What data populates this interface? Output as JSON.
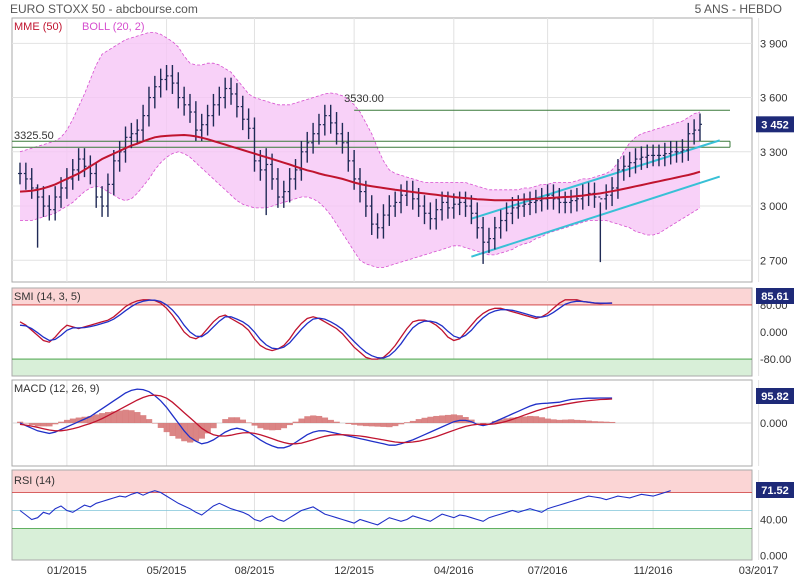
{
  "header": {
    "title": "EURO STOXX 50 - abcbourse.com",
    "period": "5 ANS - HEBDO"
  },
  "colors": {
    "price": "#1f2a56",
    "mme": "#c0142f",
    "boll_fill": "#f6c6f6",
    "boll_line": "#d64fcf",
    "channel": "#38c0d6",
    "level": "#3a7a3a",
    "smi_k": "#c0142f",
    "smi_d": "#2030c8",
    "macd": "#2030c8",
    "signal": "#c0142f",
    "hist": "#d57070",
    "rsi": "#2030c8",
    "zone_high": "#fbd5d5",
    "zone_low": "#d8efd8",
    "badge": "#1e2a78"
  },
  "chart_data": [
    {
      "type": "candlestick",
      "name": "main",
      "legend": [
        "MME (50)",
        "BOLL (20, 2)"
      ],
      "x_labels": [
        "01/2015",
        "05/2015",
        "08/2015",
        "12/2015",
        "04/2016",
        "07/2016",
        "11/2016",
        "03/2017"
      ],
      "x_label_index": [
        8,
        25,
        40,
        57,
        74,
        90,
        108,
        126
      ],
      "y_ticks": [
        2700,
        3000,
        3300,
        3600,
        3900
      ],
      "y_tick_labels": [
        "2 700",
        "3 000",
        "3 300",
        "3 600",
        "3 900"
      ],
      "ylim": [
        2580,
        4040
      ],
      "last_value": "3 452",
      "annotations": [
        {
          "label": "3325.50",
          "value": 3325.5
        },
        {
          "label": "3530.00",
          "value": 3530
        }
      ],
      "close": [
        3180,
        3150,
        3100,
        3050,
        3000,
        2980,
        3050,
        3100,
        3150,
        3200,
        3260,
        3220,
        3180,
        3050,
        3000,
        3120,
        3250,
        3300,
        3380,
        3400,
        3420,
        3500,
        3600,
        3660,
        3700,
        3720,
        3680,
        3600,
        3560,
        3520,
        3420,
        3450,
        3500,
        3560,
        3600,
        3650,
        3620,
        3550,
        3480,
        3430,
        3250,
        3200,
        3230,
        3150,
        3050,
        3080,
        3150,
        3200,
        3300,
        3350,
        3400,
        3450,
        3500,
        3460,
        3400,
        3350,
        3250,
        3150,
        3080,
        3000,
        2900,
        2880,
        2950,
        3000,
        3020,
        3060,
        3080,
        3040,
        3000,
        2960,
        2930,
        2980,
        3020,
        2990,
        3010,
        3020,
        3000,
        2960,
        2880,
        2800,
        2820,
        2880,
        2920,
        2960,
        2990,
        3000,
        3010,
        3020,
        3030,
        3040,
        3060,
        3040,
        3020,
        3020,
        3030,
        3040,
        3060,
        3070,
        3050,
        3040,
        3060,
        3100,
        3200,
        3220,
        3240,
        3260,
        3270,
        3280,
        3280,
        3280,
        3290,
        3300,
        3300,
        3310,
        3400,
        3420,
        3452
      ],
      "ranges": [
        {
          "index": 3,
          "high": 3120,
          "low": 2770
        },
        {
          "index": 42,
          "high": 3320,
          "low": 2950
        },
        {
          "index": 79,
          "high": 2940,
          "low": 2680
        },
        {
          "index": 99,
          "high": 3020,
          "low": 2690
        }
      ],
      "mme": [
        3080,
        3082,
        3085,
        3090,
        3098,
        3108,
        3120,
        3135,
        3150,
        3165,
        3180,
        3200,
        3220,
        3240,
        3260,
        3275,
        3290,
        3305,
        3320,
        3335,
        3345,
        3358,
        3370,
        3380,
        3385,
        3388,
        3390,
        3392,
        3393,
        3390,
        3385,
        3378,
        3370,
        3360,
        3350,
        3340,
        3330,
        3320,
        3310,
        3300,
        3290,
        3280,
        3270,
        3260,
        3250,
        3240,
        3230,
        3218,
        3208,
        3198,
        3190,
        3180,
        3172,
        3165,
        3158,
        3150,
        3140,
        3130,
        3122,
        3115,
        3110,
        3105,
        3100,
        3095,
        3090,
        3086,
        3082,
        3078,
        3074,
        3070,
        3066,
        3062,
        3058,
        3054,
        3050,
        3047,
        3044,
        3041,
        3038,
        3036,
        3034,
        3032,
        3032,
        3032,
        3033,
        3034,
        3036,
        3038,
        3040,
        3042,
        3044,
        3046,
        3048,
        3050,
        3052,
        3055,
        3058,
        3062,
        3066,
        3070,
        3076,
        3082,
        3088,
        3095,
        3102,
        3109,
        3116,
        3123,
        3130,
        3137,
        3144,
        3151,
        3158,
        3165,
        3172,
        3180,
        3190
      ],
      "boll_upper": [
        3300,
        3310,
        3320,
        3330,
        3340,
        3350,
        3360,
        3380,
        3420,
        3480,
        3550,
        3620,
        3700,
        3780,
        3840,
        3860,
        3880,
        3900,
        3920,
        3930,
        3940,
        3950,
        3960,
        3960,
        3950,
        3930,
        3910,
        3880,
        3830,
        3790,
        3780,
        3780,
        3790,
        3790,
        3780,
        3760,
        3740,
        3700,
        3660,
        3620,
        3600,
        3590,
        3580,
        3570,
        3560,
        3560,
        3560,
        3570,
        3580,
        3590,
        3600,
        3610,
        3620,
        3625,
        3620,
        3610,
        3590,
        3560,
        3520,
        3460,
        3400,
        3320,
        3250,
        3200,
        3180,
        3170,
        3160,
        3150,
        3140,
        3130,
        3130,
        3130,
        3130,
        3130,
        3130,
        3130,
        3130,
        3120,
        3110,
        3100,
        3090,
        3090,
        3090,
        3090,
        3090,
        3090,
        3100,
        3100,
        3110,
        3120,
        3120,
        3130,
        3130,
        3130,
        3130,
        3140,
        3150,
        3150,
        3160,
        3170,
        3180,
        3200,
        3240,
        3300,
        3350,
        3380,
        3400,
        3410,
        3420,
        3430,
        3440,
        3450,
        3460,
        3470,
        3490,
        3510,
        3520
      ],
      "boll_lower": [
        2920,
        2920,
        2920,
        2930,
        2940,
        2950,
        2960,
        2980,
        3000,
        3020,
        3050,
        3080,
        3100,
        3110,
        3100,
        3080,
        3060,
        3040,
        3030,
        3040,
        3070,
        3110,
        3150,
        3200,
        3240,
        3270,
        3290,
        3300,
        3290,
        3270,
        3240,
        3210,
        3180,
        3150,
        3120,
        3090,
        3060,
        3030,
        3010,
        3000,
        2990,
        2990,
        2990,
        3000,
        3010,
        3020,
        3030,
        3040,
        3050,
        3050,
        3040,
        3020,
        2990,
        2950,
        2900,
        2850,
        2800,
        2750,
        2700,
        2680,
        2670,
        2660,
        2660,
        2670,
        2680,
        2690,
        2700,
        2710,
        2720,
        2730,
        2740,
        2750,
        2760,
        2770,
        2780,
        2780,
        2770,
        2760,
        2750,
        2740,
        2730,
        2730,
        2740,
        2750,
        2760,
        2780,
        2790,
        2800,
        2820,
        2830,
        2850,
        2860,
        2870,
        2880,
        2890,
        2900,
        2910,
        2920,
        2920,
        2920,
        2920,
        2910,
        2900,
        2890,
        2880,
        2860,
        2850,
        2840,
        2840,
        2850,
        2870,
        2890,
        2910,
        2930,
        2950,
        2970,
        2990
      ],
      "channel_lines": [
        {
          "from": [
            77,
            2720
          ],
          "to": [
            118,
            3130
          ]
        },
        {
          "from": [
            77,
            2930
          ],
          "to": [
            118,
            3330
          ]
        }
      ]
    },
    {
      "type": "line",
      "name": "smi",
      "legend": "SMI (14, 3, 5)",
      "y_ticks": [
        80,
        0,
        -80
      ],
      "y_tick_labels": [
        "80.00",
        "0.000",
        "-80.00"
      ],
      "ylim": [
        -130,
        130
      ],
      "last_value": "85.61",
      "series": [
        {
          "role": "k",
          "values": [
            30,
            20,
            5,
            -10,
            -25,
            -30,
            -15,
            5,
            20,
            15,
            10,
            15,
            20,
            25,
            30,
            35,
            45,
            60,
            75,
            85,
            92,
            95,
            95,
            93,
            85,
            70,
            50,
            25,
            0,
            -15,
            -20,
            -10,
            10,
            30,
            45,
            50,
            40,
            30,
            20,
            5,
            -20,
            -40,
            -50,
            -55,
            -50,
            -40,
            -20,
            5,
            25,
            40,
            45,
            40,
            30,
            20,
            10,
            -5,
            -25,
            -45,
            -60,
            -75,
            -80,
            -80,
            -75,
            -60,
            -40,
            -15,
            10,
            30,
            35,
            35,
            30,
            20,
            5,
            -15,
            -25,
            -20,
            0,
            20,
            40,
            55,
            65,
            70,
            70,
            65,
            60,
            55,
            50,
            45,
            40,
            45,
            55,
            70,
            85,
            95,
            95,
            95,
            90,
            88,
            85,
            84,
            85,
            86
          ]
        },
        {
          "role": "d",
          "values": [
            20,
            18,
            10,
            -2,
            -15,
            -25,
            -22,
            -10,
            5,
            12,
            12,
            13,
            16,
            20,
            25,
            30,
            38,
            50,
            63,
            75,
            85,
            91,
            94,
            94,
            90,
            80,
            65,
            45,
            20,
            0,
            -12,
            -14,
            -2,
            15,
            32,
            45,
            45,
            38,
            30,
            18,
            0,
            -22,
            -38,
            -48,
            -50,
            -45,
            -32,
            -12,
            8,
            25,
            38,
            41,
            38,
            30,
            20,
            8,
            -10,
            -28,
            -45,
            -60,
            -70,
            -76,
            -77,
            -70,
            -55,
            -35,
            -10,
            12,
            25,
            32,
            32,
            28,
            18,
            2,
            -12,
            -18,
            -10,
            5,
            25,
            42,
            55,
            62,
            66,
            66,
            64,
            60,
            55,
            50,
            45,
            44,
            48,
            58,
            70,
            82,
            88,
            91,
            90,
            88,
            86,
            85,
            85,
            85
          ]
        }
      ]
    },
    {
      "type": "line",
      "name": "macd",
      "legend": "MACD (12, 26, 9)",
      "y_ticks": [
        0
      ],
      "y_tick_labels": [
        "0.000"
      ],
      "ylim": [
        -165,
        165
      ],
      "last_value": "95.82",
      "series": [
        {
          "role": "macd",
          "values": [
            0,
            -10,
            -20,
            -30,
            -35,
            -40,
            -35,
            -25,
            -15,
            -5,
            5,
            15,
            25,
            40,
            55,
            70,
            85,
            100,
            115,
            125,
            130,
            128,
            120,
            105,
            85,
            60,
            30,
            0,
            -30,
            -55,
            -70,
            -80,
            -75,
            -65,
            -50,
            -35,
            -25,
            -20,
            -25,
            -35,
            -50,
            -65,
            -78,
            -88,
            -95,
            -95,
            -88,
            -75,
            -60,
            -45,
            -35,
            -30,
            -30,
            -35,
            -40,
            -45,
            -50,
            -55,
            -60,
            -65,
            -70,
            -75,
            -80,
            -85,
            -85,
            -80,
            -72,
            -65,
            -55,
            -45,
            -35,
            -25,
            -15,
            -5,
            5,
            10,
            10,
            5,
            -5,
            -10,
            -5,
            5,
            15,
            25,
            35,
            45,
            55,
            65,
            72,
            75,
            76,
            78,
            80,
            85,
            90,
            92,
            94,
            95,
            95,
            96,
            96,
            96
          ]
        },
        {
          "role": "signal",
          "values": [
            -5,
            -8,
            -12,
            -17,
            -22,
            -27,
            -30,
            -30,
            -27,
            -22,
            -16,
            -9,
            -2,
            7,
            17,
            28,
            40,
            52,
            64,
            76,
            88,
            98,
            105,
            107,
            104,
            95,
            80,
            60,
            40,
            20,
            0,
            -20,
            -35,
            -45,
            -50,
            -50,
            -47,
            -42,
            -38,
            -37,
            -40,
            -45,
            -52,
            -60,
            -68,
            -75,
            -80,
            -80,
            -77,
            -71,
            -64,
            -57,
            -51,
            -47,
            -45,
            -45,
            -46,
            -48,
            -50,
            -53,
            -57,
            -61,
            -65,
            -69,
            -73,
            -75,
            -75,
            -73,
            -70,
            -65,
            -59,
            -52,
            -44,
            -36,
            -28,
            -20,
            -13,
            -8,
            -5,
            -5,
            -5,
            -3,
            1,
            7,
            14,
            22,
            30,
            38,
            46,
            53,
            59,
            64,
            68,
            72,
            76,
            80,
            83,
            86,
            88,
            90,
            91,
            92
          ]
        }
      ],
      "histogram_source": "macd - signal"
    },
    {
      "type": "line",
      "name": "rsi",
      "legend": "RSI (14)",
      "y_ticks": [
        40,
        0
      ],
      "y_tick_labels": [
        "40.00",
        "0.000"
      ],
      "ylim": [
        -5,
        95
      ],
      "last_value": "71.52",
      "bands": [
        70,
        30
      ],
      "series": [
        {
          "role": "rsi",
          "values": [
            50,
            45,
            40,
            42,
            48,
            46,
            52,
            55,
            50,
            48,
            52,
            56,
            54,
            58,
            60,
            62,
            64,
            66,
            65,
            68,
            70,
            67,
            70,
            72,
            70,
            66,
            62,
            58,
            55,
            52,
            48,
            45,
            50,
            55,
            58,
            55,
            52,
            50,
            48,
            45,
            40,
            38,
            42,
            44,
            40,
            38,
            42,
            46,
            50,
            52,
            54,
            50,
            46,
            44,
            42,
            40,
            38,
            36,
            40,
            38,
            36,
            34,
            38,
            42,
            40,
            38,
            40,
            44,
            42,
            40,
            38,
            42,
            46,
            44,
            42,
            45,
            44,
            42,
            40,
            38,
            42,
            44,
            46,
            48,
            50,
            48,
            50,
            52,
            50,
            48,
            52,
            54,
            56,
            58,
            60,
            62,
            64,
            66,
            65,
            64,
            62,
            64,
            66,
            65,
            64,
            66,
            68,
            67,
            66,
            68,
            70,
            72
          ]
        }
      ]
    }
  ]
}
